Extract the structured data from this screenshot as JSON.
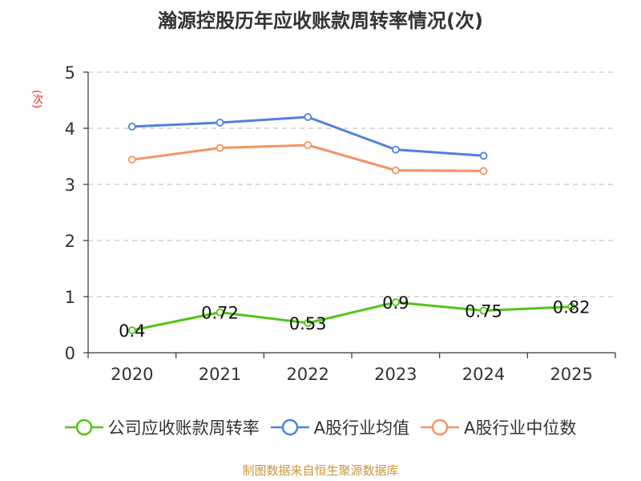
{
  "chart_data": {
    "type": "line",
    "title": "瀚源控股历年应收账款周转率情况(次)",
    "ylabel": "(次)",
    "xlabel": "",
    "categories": [
      "2020",
      "2021",
      "2022",
      "2023",
      "2024",
      "2025"
    ],
    "ylim": [
      0,
      5
    ],
    "yticks": [
      0,
      1,
      2,
      3,
      4,
      5
    ],
    "grid": true,
    "series": [
      {
        "name": "公司应收账款周转率",
        "color": "#52c41a",
        "values": [
          0.4,
          0.72,
          0.53,
          0.9,
          0.75,
          0.82
        ],
        "labels": [
          "0.4",
          "0.72",
          "0.53",
          "0.9",
          "0.75",
          "0.82"
        ]
      },
      {
        "name": "A股行业均值",
        "color": "#4f81e0",
        "values": [
          4.03,
          4.1,
          4.2,
          3.62,
          3.51,
          null
        ]
      },
      {
        "name": "A股行业中位数",
        "color": "#f59364",
        "values": [
          3.44,
          3.65,
          3.7,
          3.25,
          3.24,
          null
        ]
      }
    ],
    "source": "制图数据来自恒生聚源数据库"
  }
}
